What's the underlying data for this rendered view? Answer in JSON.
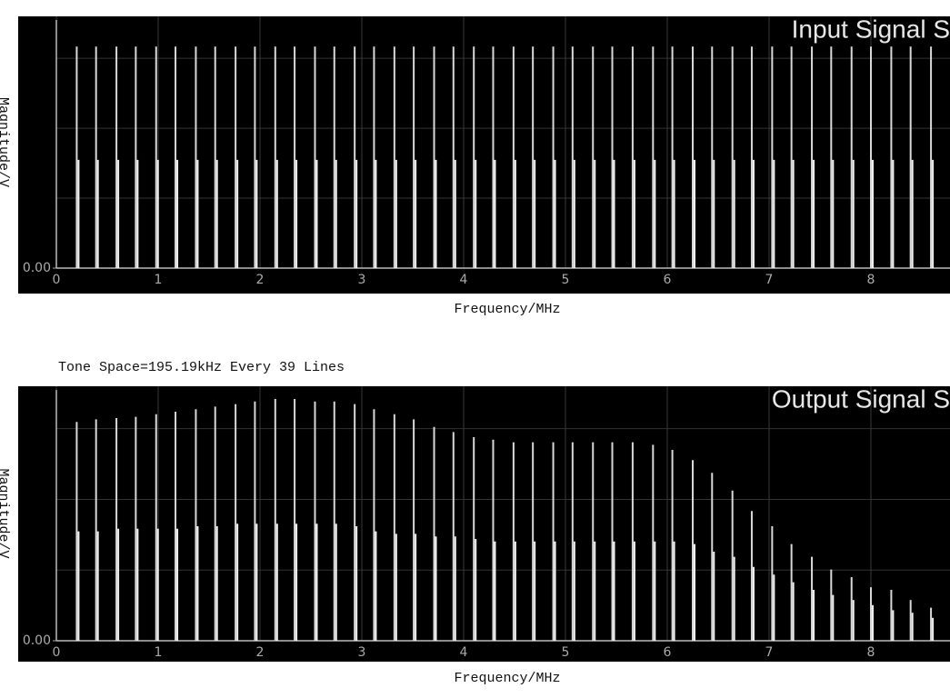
{
  "chart_data": [
    {
      "type": "stem",
      "title": "Input Signal S",
      "xlabel": "Frequency/MHz",
      "ylabel": "Magnitude/V",
      "x": [
        0.2,
        0.39,
        0.59,
        0.78,
        0.98,
        1.17,
        1.37,
        1.56,
        1.76,
        1.95,
        2.15,
        2.34,
        2.54,
        2.73,
        2.93,
        3.12,
        3.32,
        3.51,
        3.71,
        3.9,
        4.1,
        4.29,
        4.49,
        4.68,
        4.88,
        5.07,
        5.27,
        5.46,
        5.66,
        5.86,
        6.05,
        6.25,
        6.44,
        6.64,
        6.83,
        7.03,
        7.22,
        7.42,
        7.61,
        7.81,
        8.0,
        8.2,
        8.39,
        8.59
      ],
      "series": [
        {
          "color": "#d8d8d8",
          "values": [
            0.88,
            0.88,
            0.88,
            0.88,
            0.88,
            0.88,
            0.88,
            0.88,
            0.88,
            0.88,
            0.88,
            0.88,
            0.88,
            0.88,
            0.88,
            0.88,
            0.88,
            0.88,
            0.88,
            0.88,
            0.88,
            0.88,
            0.88,
            0.88,
            0.88,
            0.88,
            0.88,
            0.88,
            0.88,
            0.88,
            0.88,
            0.88,
            0.88,
            0.88,
            0.88,
            0.88,
            0.88,
            0.88,
            0.88,
            0.88,
            0.88,
            0.88,
            0.88,
            0.88
          ]
        },
        {
          "color": "#f0f0f0",
          "values": [
            0.43,
            0.43,
            0.43,
            0.43,
            0.43,
            0.43,
            0.43,
            0.43,
            0.43,
            0.43,
            0.43,
            0.43,
            0.43,
            0.43,
            0.43,
            0.43,
            0.43,
            0.43,
            0.43,
            0.43,
            0.43,
            0.43,
            0.43,
            0.43,
            0.43,
            0.43,
            0.43,
            0.43,
            0.43,
            0.43,
            0.43,
            0.43,
            0.43,
            0.43,
            0.43,
            0.43,
            0.43,
            0.43,
            0.43,
            0.43,
            0.43,
            0.43,
            0.43,
            0.43
          ]
        }
      ],
      "xlim": [
        0,
        8.8
      ],
      "ylim": [
        0,
        1
      ],
      "xticks": [
        0,
        1,
        2,
        3,
        4,
        5,
        6,
        7,
        8
      ],
      "yticks": [
        {
          "value": 0,
          "label": "0.00"
        }
      ],
      "grid": true
    },
    {
      "type": "stem",
      "title": "Output Signal S",
      "xlabel": "Frequency/MHz",
      "ylabel": "Magnitude/V",
      "annotation": "Tone Space=195.19kHz Every 39 Lines",
      "x": [
        0.2,
        0.39,
        0.59,
        0.78,
        0.98,
        1.17,
        1.37,
        1.56,
        1.76,
        1.95,
        2.15,
        2.34,
        2.54,
        2.73,
        2.93,
        3.12,
        3.32,
        3.51,
        3.71,
        3.9,
        4.1,
        4.29,
        4.49,
        4.68,
        4.88,
        5.07,
        5.27,
        5.46,
        5.66,
        5.86,
        6.05,
        6.25,
        6.44,
        6.64,
        6.83,
        7.03,
        7.22,
        7.42,
        7.61,
        7.81,
        8.0,
        8.2,
        8.39,
        8.59
      ],
      "series": [
        {
          "color": "#d8d8d8",
          "values": [
            0.86,
            0.87,
            0.875,
            0.88,
            0.89,
            0.9,
            0.91,
            0.92,
            0.93,
            0.94,
            0.95,
            0.95,
            0.94,
            0.94,
            0.93,
            0.91,
            0.89,
            0.87,
            0.84,
            0.82,
            0.8,
            0.79,
            0.78,
            0.78,
            0.78,
            0.78,
            0.78,
            0.78,
            0.78,
            0.77,
            0.75,
            0.71,
            0.66,
            0.59,
            0.51,
            0.45,
            0.38,
            0.33,
            0.28,
            0.25,
            0.21,
            0.2,
            0.16,
            0.13
          ]
        },
        {
          "color": "#f0f0f0",
          "values": [
            0.43,
            0.43,
            0.44,
            0.44,
            0.44,
            0.44,
            0.45,
            0.45,
            0.46,
            0.46,
            0.46,
            0.46,
            0.46,
            0.46,
            0.45,
            0.43,
            0.42,
            0.42,
            0.41,
            0.41,
            0.4,
            0.39,
            0.39,
            0.39,
            0.39,
            0.39,
            0.39,
            0.39,
            0.39,
            0.39,
            0.39,
            0.38,
            0.35,
            0.33,
            0.29,
            0.26,
            0.23,
            0.2,
            0.18,
            0.16,
            0.14,
            0.12,
            0.11,
            0.09
          ]
        }
      ],
      "xlim": [
        0,
        8.8
      ],
      "ylim": [
        0,
        1
      ],
      "xticks": [
        0,
        1,
        2,
        3,
        4,
        5,
        6,
        7,
        8
      ],
      "yticks": [
        {
          "value": 0,
          "label": "0.00"
        }
      ],
      "grid": true
    }
  ]
}
